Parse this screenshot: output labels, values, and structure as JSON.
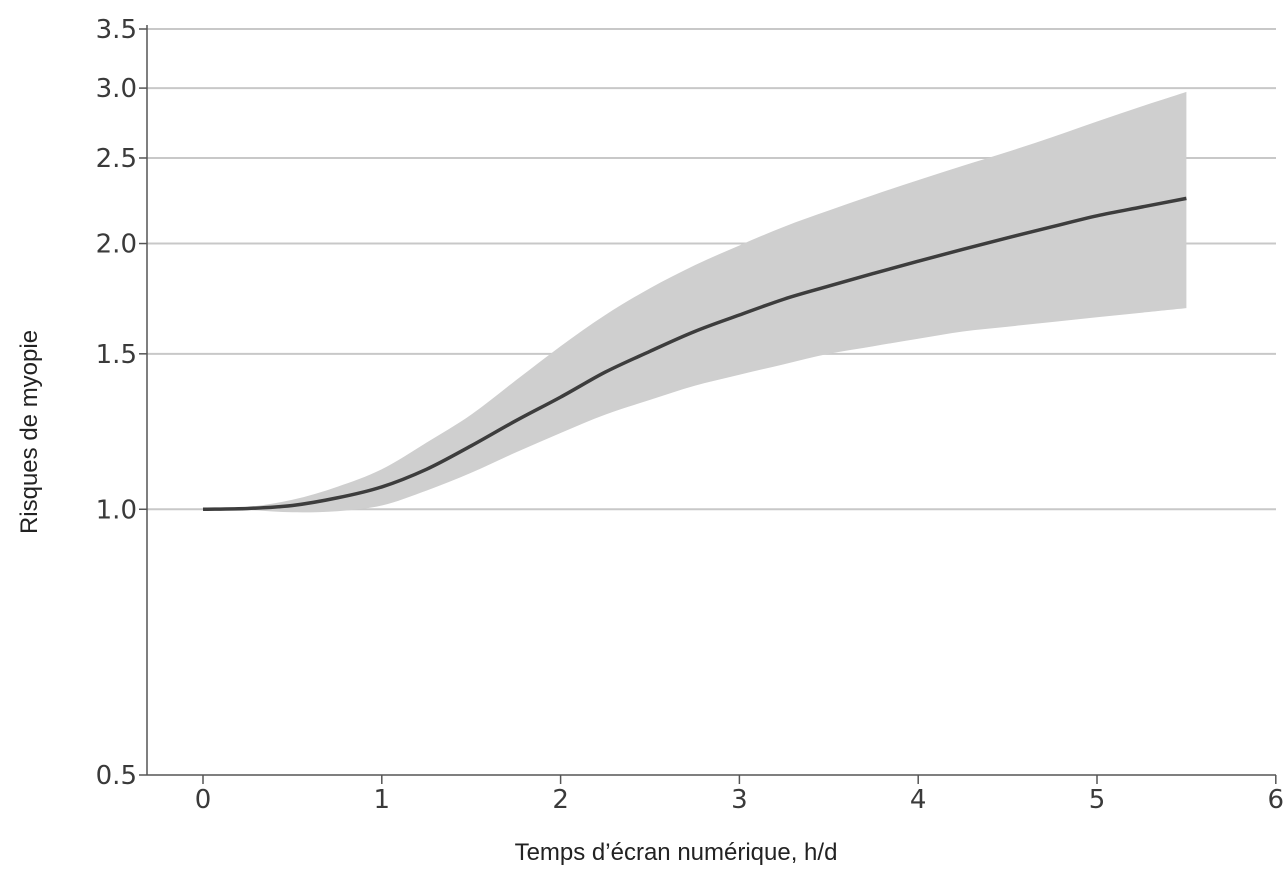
{
  "chart_data": {
    "type": "line",
    "title": "",
    "xlabel": "Temps d’écran numérique, h/d",
    "ylabel": "Risques de myopie",
    "xlim": [
      0,
      6
    ],
    "ylim": [
      0.5,
      3.5
    ],
    "yscale": "log",
    "grid": "horizontal",
    "x_ticks": [
      {
        "value": 0,
        "label": "0"
      },
      {
        "value": 1,
        "label": "1"
      },
      {
        "value": 2,
        "label": "2"
      },
      {
        "value": 3,
        "label": "3"
      },
      {
        "value": 4,
        "label": "4"
      },
      {
        "value": 5,
        "label": "5"
      },
      {
        "value": 6,
        "label": "6"
      }
    ],
    "y_ticks": [
      {
        "value": 0.5,
        "label": "0.5"
      },
      {
        "value": 1.0,
        "label": "1.0"
      },
      {
        "value": 1.5,
        "label": "1.5"
      },
      {
        "value": 2.0,
        "label": "2.0"
      },
      {
        "value": 2.5,
        "label": "2.5"
      },
      {
        "value": 3.0,
        "label": "3.0"
      },
      {
        "value": 3.5,
        "label": "3.5"
      }
    ],
    "gridlines_y": [
      1.0,
      1.5,
      2.0,
      2.5,
      3.0,
      3.5
    ],
    "series": [
      {
        "x": [
          0,
          0.25,
          0.5,
          0.75,
          1.0,
          1.25,
          1.5,
          1.75,
          2.0,
          2.25,
          2.5,
          2.75,
          3.0,
          3.25,
          3.5,
          3.75,
          4.0,
          4.25,
          4.5,
          4.75,
          5.0,
          5.25,
          5.5
        ],
        "y": [
          1.0,
          1.002,
          1.01,
          1.03,
          1.06,
          1.11,
          1.18,
          1.26,
          1.34,
          1.43,
          1.51,
          1.59,
          1.66,
          1.73,
          1.79,
          1.85,
          1.91,
          1.97,
          2.03,
          2.09,
          2.15,
          2.2,
          2.25
        ],
        "lower": [
          1.0,
          0.998,
          0.992,
          0.995,
          1.01,
          1.05,
          1.1,
          1.16,
          1.22,
          1.28,
          1.33,
          1.38,
          1.42,
          1.46,
          1.5,
          1.53,
          1.56,
          1.59,
          1.61,
          1.63,
          1.65,
          1.67,
          1.69
        ],
        "upper": [
          1.0,
          1.006,
          1.025,
          1.06,
          1.11,
          1.19,
          1.28,
          1.4,
          1.53,
          1.66,
          1.78,
          1.89,
          1.99,
          2.09,
          2.18,
          2.27,
          2.36,
          2.45,
          2.54,
          2.64,
          2.75,
          2.86,
          2.97
        ],
        "color": "#3d3d3d",
        "band_color": "#cfcfcf"
      }
    ]
  }
}
